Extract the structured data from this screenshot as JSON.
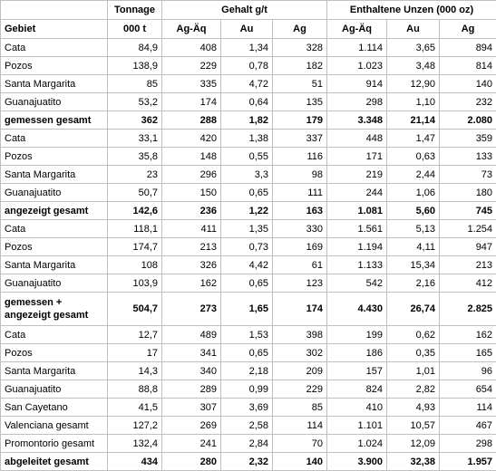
{
  "table": {
    "header": {
      "groups": [
        "Tonnage",
        "Gehalt g/t",
        "Enthaltene Unzen (000 oz)"
      ],
      "columns": [
        "Gebiet",
        "000 t",
        "Ag-Äq",
        "Au",
        "Ag",
        "Ag-Äq",
        "Au",
        "Ag"
      ]
    },
    "rows": [
      {
        "cells": [
          "Cata",
          "84,9",
          "408",
          "1,34",
          "328",
          "1.114",
          "3,65",
          "894"
        ]
      },
      {
        "cells": [
          "Pozos",
          "138,9",
          "229",
          "0,78",
          "182",
          "1.023",
          "3,48",
          "814"
        ]
      },
      {
        "cells": [
          "Santa Margarita",
          "85",
          "335",
          "4,72",
          "51",
          "914",
          "12,90",
          "140"
        ]
      },
      {
        "cells": [
          "Guanajuatito",
          "53,2",
          "174",
          "0,64",
          "135",
          "298",
          "1,10",
          "232"
        ]
      },
      {
        "cells": [
          "gemessen gesamt",
          "362",
          "288",
          "1,82",
          "179",
          "3.348",
          "21,14",
          "2.080"
        ],
        "bold": true
      },
      {
        "cells": [
          "Cata",
          "33,1",
          "420",
          "1,38",
          "337",
          "448",
          "1,47",
          "359"
        ]
      },
      {
        "cells": [
          "Pozos",
          "35,8",
          "148",
          "0,55",
          "116",
          "171",
          "0,63",
          "133"
        ]
      },
      {
        "cells": [
          "Santa Margarita",
          "23",
          "296",
          "3,3",
          "98",
          "219",
          "2,44",
          "73"
        ]
      },
      {
        "cells": [
          "Guanajuatito",
          "50,7",
          "150",
          "0,65",
          "111",
          "244",
          "1,06",
          "180"
        ]
      },
      {
        "cells": [
          "angezeigt gesamt",
          "142,6",
          "236",
          "1,22",
          "163",
          "1.081",
          "5,60",
          "745"
        ],
        "bold": true
      },
      {
        "cells": [
          "Cata",
          "118,1",
          "411",
          "1,35",
          "330",
          "1.561",
          "5,13",
          "1.254"
        ]
      },
      {
        "cells": [
          "Pozos",
          "174,7",
          "213",
          "0,73",
          "169",
          "1.194",
          "4,11",
          "947"
        ]
      },
      {
        "cells": [
          "Santa Margarita",
          "108",
          "326",
          "4,42",
          "61",
          "1.133",
          "15,34",
          "213"
        ]
      },
      {
        "cells": [
          "Guanajuatito",
          "103,9",
          "162",
          "0,65",
          "123",
          "542",
          "2,16",
          "412"
        ]
      },
      {
        "cells": [
          "gemessen + angezeigt gesamt",
          "504,7",
          "273",
          "1,65",
          "174",
          "4.430",
          "26,74",
          "2.825"
        ],
        "bold": true
      },
      {
        "cells": [
          "Cata",
          "12,7",
          "489",
          "1,53",
          "398",
          "199",
          "0,62",
          "162"
        ]
      },
      {
        "cells": [
          "Pozos",
          "17",
          "341",
          "0,65",
          "302",
          "186",
          "0,35",
          "165"
        ]
      },
      {
        "cells": [
          "Santa Margarita",
          "14,3",
          "340",
          "2,18",
          "209",
          "157",
          "1,01",
          "96"
        ]
      },
      {
        "cells": [
          "Guanajuatito",
          "88,8",
          "289",
          "0,99",
          "229",
          "824",
          "2,82",
          "654"
        ]
      },
      {
        "cells": [
          "San Cayetano",
          "41,5",
          "307",
          "3,69",
          "85",
          "410",
          "4,93",
          "114"
        ]
      },
      {
        "cells": [
          "Valenciana gesamt",
          "127,2",
          "269",
          "2,58",
          "114",
          "1.101",
          "10,57",
          "467"
        ]
      },
      {
        "cells": [
          "Promontorio gesamt",
          "132,4",
          "241",
          "2,84",
          "70",
          "1.024",
          "12,09",
          "298"
        ]
      },
      {
        "cells": [
          "abgeleitet gesamt",
          "434",
          "280",
          "2,32",
          "140",
          "3.900",
          "32,38",
          "1.957"
        ],
        "bold": true
      }
    ]
  }
}
